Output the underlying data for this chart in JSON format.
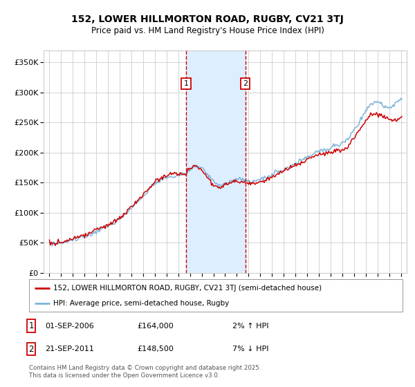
{
  "title": "152, LOWER HILLMORTON ROAD, RUGBY, CV21 3TJ",
  "subtitle": "Price paid vs. HM Land Registry's House Price Index (HPI)",
  "legend_line1": "152, LOWER HILLMORTON ROAD, RUGBY, CV21 3TJ (semi-detached house)",
  "legend_line2": "HPI: Average price, semi-detached house, Rugby",
  "footer": "Contains HM Land Registry data © Crown copyright and database right 2025.\nThis data is licensed under the Open Government Licence v3.0.",
  "sale1_date_num": 2006.67,
  "sale2_date_num": 2011.72,
  "ylim": [
    0,
    370000
  ],
  "xlim": [
    1994.5,
    2025.5
  ],
  "red_color": "#cc0000",
  "blue_color": "#7db4d8",
  "shade_color": "#ddeeff",
  "grid_color": "#cccccc",
  "background_color": "#ffffff",
  "hpi_years": [
    1995.0,
    1995.5,
    1996.0,
    1996.5,
    1997.0,
    1997.5,
    1998.0,
    1998.5,
    1999.0,
    1999.5,
    2000.0,
    2000.5,
    2001.0,
    2001.5,
    2002.0,
    2002.5,
    2003.0,
    2003.5,
    2004.0,
    2004.5,
    2005.0,
    2005.5,
    2006.0,
    2006.5,
    2007.0,
    2007.5,
    2008.0,
    2008.5,
    2009.0,
    2009.5,
    2010.0,
    2010.5,
    2011.0,
    2011.5,
    2012.0,
    2012.5,
    2013.0,
    2013.5,
    2014.0,
    2014.5,
    2015.0,
    2015.5,
    2016.0,
    2016.5,
    2017.0,
    2017.5,
    2018.0,
    2018.5,
    2019.0,
    2019.5,
    2020.0,
    2020.5,
    2021.0,
    2021.5,
    2022.0,
    2022.5,
    2023.0,
    2023.5,
    2024.0,
    2024.5,
    2025.0
  ],
  "hpi_vals": [
    50000,
    48000,
    50000,
    52000,
    55000,
    58000,
    60000,
    63000,
    68000,
    73000,
    78000,
    84000,
    90000,
    98000,
    108000,
    118000,
    128000,
    138000,
    148000,
    155000,
    158000,
    160000,
    162000,
    164000,
    172000,
    178000,
    175000,
    165000,
    152000,
    145000,
    148000,
    152000,
    156000,
    155000,
    152000,
    152000,
    155000,
    158000,
    163000,
    168000,
    172000,
    176000,
    182000,
    188000,
    194000,
    198000,
    202000,
    205000,
    208000,
    212000,
    215000,
    222000,
    238000,
    252000,
    270000,
    282000,
    285000,
    278000,
    272000,
    280000,
    290000
  ],
  "price_years": [
    1995.0,
    1995.5,
    1996.0,
    1996.5,
    1997.0,
    1997.5,
    1998.0,
    1998.5,
    1999.0,
    1999.5,
    2000.0,
    2000.5,
    2001.0,
    2001.5,
    2002.0,
    2002.5,
    2003.0,
    2003.5,
    2004.0,
    2004.5,
    2005.0,
    2005.5,
    2006.0,
    2006.67,
    2007.0,
    2007.5,
    2008.0,
    2008.5,
    2009.0,
    2009.5,
    2010.0,
    2010.5,
    2011.0,
    2011.72,
    2012.0,
    2012.5,
    2013.0,
    2013.5,
    2014.0,
    2014.5,
    2015.0,
    2015.5,
    2016.0,
    2016.5,
    2017.0,
    2017.5,
    2018.0,
    2018.5,
    2019.0,
    2019.5,
    2020.0,
    2020.5,
    2021.0,
    2021.5,
    2022.0,
    2022.5,
    2023.0,
    2023.5,
    2024.0,
    2024.5,
    2025.0
  ],
  "price_vals": [
    51000,
    49000,
    51000,
    53000,
    56000,
    60000,
    63000,
    67000,
    72000,
    76000,
    80000,
    86000,
    91000,
    99000,
    110000,
    120000,
    130000,
    140000,
    150000,
    158000,
    162000,
    164000,
    164000,
    164000,
    175000,
    178000,
    172000,
    158000,
    145000,
    140000,
    145000,
    150000,
    153000,
    148500,
    150000,
    148000,
    152000,
    155000,
    160000,
    165000,
    170000,
    174000,
    178000,
    182000,
    188000,
    192000,
    196000,
    198000,
    200000,
    203000,
    205000,
    210000,
    225000,
    238000,
    255000,
    262000,
    265000,
    260000,
    255000,
    252000,
    258000
  ]
}
